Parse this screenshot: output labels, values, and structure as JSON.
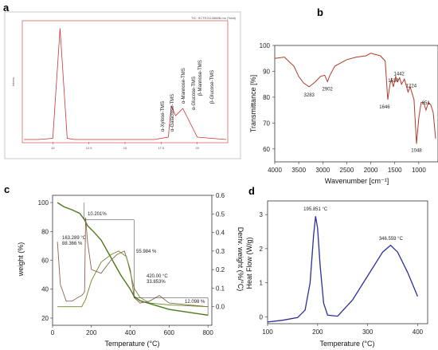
{
  "panels": {
    "a": "a",
    "b": "b",
    "c": "c",
    "d": "d"
  },
  "chart_data": [
    {
      "panel": "a",
      "type": "line",
      "title": "",
      "xlabel": "",
      "ylabel": "",
      "x": [
        8,
        9,
        10,
        10.5,
        11,
        11.5,
        12,
        13,
        14,
        15,
        16,
        16.5,
        17,
        17.5,
        18,
        18.2,
        18.5,
        19,
        20,
        21,
        22
      ],
      "y": [
        2,
        2,
        3,
        95,
        3,
        2,
        2,
        2,
        2,
        2,
        2,
        2,
        2,
        3,
        4,
        30,
        22,
        28,
        4,
        3,
        2
      ],
      "axis_color": "#cc3333",
      "line_color": "#cc3333",
      "tick_labels_x": [
        "10",
        "12.5",
        "15",
        "17.5",
        "20"
      ],
      "peak_labels": [
        "α-Xylose-TMS",
        "α-Galactose-TMS",
        "α-Mannose-TMS",
        "α-Glucose-TMS",
        "β-Mannose-TMS",
        "β-Glucose-TMS"
      ],
      "tiny_text": "TIC: SCTE2110568B.ms (Total)"
    },
    {
      "panel": "b",
      "type": "line",
      "title": "",
      "xlabel": "Wavenumber [cm⁻¹]",
      "ylabel": "Transmittance [%]",
      "xlim": [
        4000,
        600
      ],
      "ylim": [
        55,
        100
      ],
      "x_ticks": [
        4000,
        3500,
        3000,
        2500,
        2000,
        1500,
        1000
      ],
      "y_ticks": [
        60,
        70,
        80,
        90,
        100
      ],
      "line_color": "#b33a2a",
      "points": [
        [
          4000,
          95
        ],
        [
          3800,
          95.5
        ],
        [
          3600,
          92
        ],
        [
          3500,
          88
        ],
        [
          3400,
          85.5
        ],
        [
          3283,
          84
        ],
        [
          3150,
          86
        ],
        [
          3050,
          88
        ],
        [
          2960,
          88.5
        ],
        [
          2902,
          86
        ],
        [
          2850,
          88.5
        ],
        [
          2750,
          92
        ],
        [
          2500,
          94.5
        ],
        [
          2300,
          95.5
        ],
        [
          2100,
          96
        ],
        [
          2000,
          97
        ],
        [
          1900,
          96.5
        ],
        [
          1800,
          96
        ],
        [
          1700,
          94
        ],
        [
          1646,
          79
        ],
        [
          1600,
          85
        ],
        [
          1570,
          87
        ],
        [
          1530,
          84
        ],
        [
          1480,
          88
        ],
        [
          1442,
          86
        ],
        [
          1400,
          87.5
        ],
        [
          1360,
          85
        ],
        [
          1300,
          87
        ],
        [
          1224,
          82
        ],
        [
          1180,
          84
        ],
        [
          1100,
          79
        ],
        [
          1048,
          62
        ],
        [
          1000,
          72
        ],
        [
          950,
          78
        ],
        [
          900,
          78
        ],
        [
          851,
          75
        ],
        [
          800,
          78
        ],
        [
          750,
          77
        ],
        [
          700,
          74
        ],
        [
          650,
          64
        ]
      ],
      "annotations": [
        {
          "x": 3283,
          "label": "3283"
        },
        {
          "x": 2902,
          "label": "2902"
        },
        {
          "x": 1646,
          "label": "1646"
        },
        {
          "x": 1530,
          "label": "1530"
        },
        {
          "x": 1442,
          "label": "1442"
        },
        {
          "x": 1224,
          "label": "1224"
        },
        {
          "x": 1048,
          "label": "1048"
        },
        {
          "x": 851,
          "label": "851"
        }
      ]
    },
    {
      "panel": "c",
      "type": "line",
      "title": "",
      "xlabel": "Temperature (°C)",
      "ylabel": "weight (%)",
      "ylabel_right": "Deriv. weight (%/°C)",
      "xlim": [
        0,
        820
      ],
      "ylim": [
        15,
        105
      ],
      "ylim_right": [
        -0.1,
        0.6
      ],
      "x_ticks": [
        0,
        200,
        400,
        600,
        800
      ],
      "y_ticks": [
        20,
        40,
        60,
        80,
        100
      ],
      "y_ticks_right": [
        "0.0",
        "0.1",
        "0.2",
        "0.3",
        "0.4",
        "0.5",
        "0.6"
      ],
      "series": [
        {
          "color": "#4a7a1a",
          "points": [
            [
              25,
              100
            ],
            [
              60,
              97
            ],
            [
              100,
              95
            ],
            [
              140,
              92.5
            ],
            [
              163,
              88.4
            ],
            [
              180,
              84
            ],
            [
              210,
              80
            ],
            [
              250,
              74
            ],
            [
              300,
              62
            ],
            [
              350,
              50
            ],
            [
              400,
              40
            ],
            [
              420,
              35
            ],
            [
              450,
              32
            ],
            [
              500,
              30
            ],
            [
              600,
              26
            ],
            [
              700,
              24
            ],
            [
              800,
              22
            ]
          ]
        },
        {
          "color": "#8b6650",
          "axis": "right",
          "points": [
            [
              25,
              0.35
            ],
            [
              40,
              0.12
            ],
            [
              70,
              0.03
            ],
            [
              100,
              0.03
            ],
            [
              130,
              0.05
            ],
            [
              150,
              0.06
            ],
            [
              165,
              0.08
            ],
            [
              170,
              0.48
            ],
            [
              180,
              0.35
            ],
            [
              200,
              0.2
            ],
            [
              250,
              0.18
            ],
            [
              300,
              0.25
            ],
            [
              330,
              0.28
            ],
            [
              370,
              0.3
            ],
            [
              400,
              0.2
            ],
            [
              420,
              0.05
            ],
            [
              450,
              0.02
            ],
            [
              500,
              0.03
            ],
            [
              550,
              0.06
            ],
            [
              600,
              0.02
            ],
            [
              700,
              0.01
            ],
            [
              800,
              0.0
            ]
          ]
        },
        {
          "color": "#6b8a25",
          "axis": "right",
          "points": [
            [
              25,
              0.0
            ],
            [
              150,
              0.0
            ],
            [
              170,
              0.04
            ],
            [
              200,
              0.14
            ],
            [
              250,
              0.24
            ],
            [
              300,
              0.28
            ],
            [
              340,
              0.3
            ],
            [
              380,
              0.27
            ],
            [
              420,
              0.1
            ],
            [
              450,
              0.05
            ],
            [
              500,
              0.02
            ],
            [
              600,
              0.01
            ],
            [
              800,
              0.0
            ]
          ]
        }
      ],
      "annotations": {
        "pct1": "10.201%",
        "pt1_temp": "163.289 °C",
        "pt1_w": "88.366 %",
        "pct2": "55.984 %",
        "pt2_temp": "420.00 °C",
        "pt2_w": "33.853%",
        "pct3": "12.098 %"
      }
    },
    {
      "panel": "d",
      "type": "line",
      "title": "",
      "xlabel": "Temperature (°C)",
      "ylabel": "Heat Flow (W/g)",
      "xlim": [
        100,
        420
      ],
      "ylim": [
        -0.2,
        3.4
      ],
      "x_ticks": [
        100,
        200,
        300,
        400
      ],
      "y_ticks": [
        0,
        1,
        2,
        3
      ],
      "line_color": "#2b2f9a",
      "points": [
        [
          100,
          -0.15
        ],
        [
          130,
          -0.1
        ],
        [
          160,
          -0.02
        ],
        [
          175,
          0.2
        ],
        [
          185,
          1.0
        ],
        [
          192,
          2.4
        ],
        [
          196,
          2.95
        ],
        [
          200,
          2.6
        ],
        [
          205,
          1.5
        ],
        [
          212,
          0.4
        ],
        [
          220,
          0.05
        ],
        [
          240,
          0.02
        ],
        [
          270,
          0.5
        ],
        [
          300,
          1.2
        ],
        [
          330,
          1.9
        ],
        [
          346,
          2.1
        ],
        [
          360,
          1.9
        ],
        [
          380,
          1.3
        ],
        [
          400,
          0.6
        ]
      ],
      "annotations": [
        {
          "x": 195.851,
          "label": "195.851 °C"
        },
        {
          "x": 346.559,
          "label": "346.559 °C"
        }
      ]
    }
  ]
}
